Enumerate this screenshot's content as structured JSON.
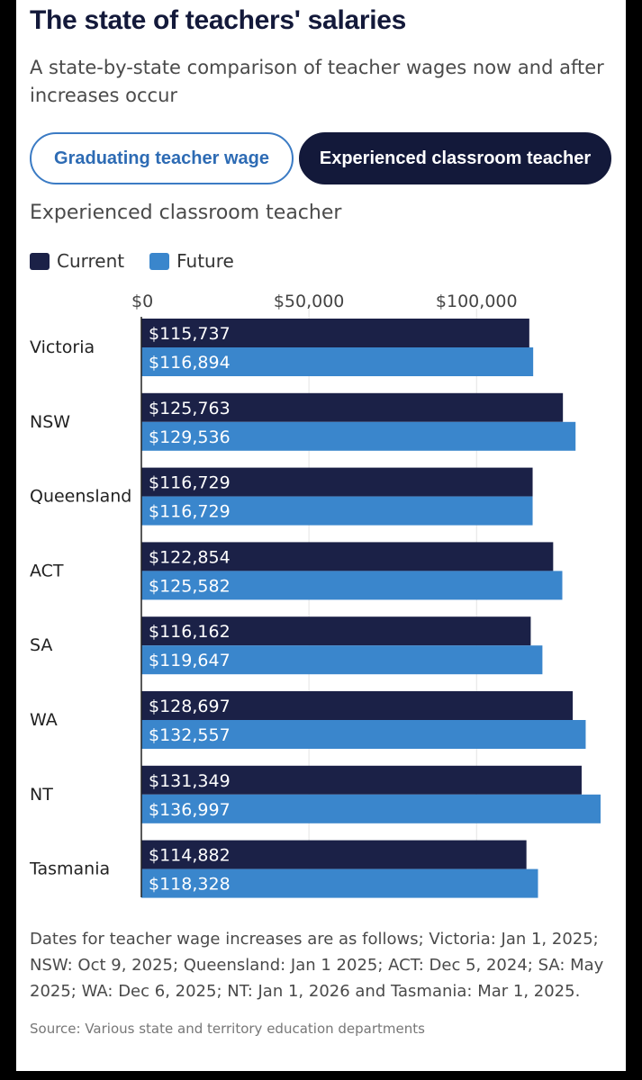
{
  "header": {
    "title": "The state of teachers' salaries",
    "subtitle": "A state-by-state comparison of teacher wages now and after increases occur"
  },
  "tabs": [
    {
      "label": "Graduating teacher wage",
      "selected": false
    },
    {
      "label": "Experienced classroom teacher",
      "selected": true
    }
  ],
  "colors": {
    "current": "#1b2147",
    "future": "#3a86cc",
    "accent": "#3b7bc4"
  },
  "legend": {
    "current": "Current",
    "future": "Future"
  },
  "chart_data": {
    "type": "bar",
    "orientation": "horizontal",
    "title": "Experienced classroom teacher",
    "categories": [
      "Victoria",
      "NSW",
      "Queensland",
      "ACT",
      "SA",
      "WA",
      "NT",
      "Tasmania"
    ],
    "series": [
      {
        "name": "Current",
        "values": [
          115737,
          125763,
          116729,
          122854,
          116162,
          128697,
          131349,
          114882
        ],
        "labels": [
          "$115,737",
          "$125,763",
          "$116,729",
          "$122,854",
          "$116,162",
          "$128,697",
          "$131,349",
          "$114,882"
        ]
      },
      {
        "name": "Future",
        "values": [
          116894,
          129536,
          116729,
          125582,
          119647,
          132557,
          136997,
          118328
        ],
        "labels": [
          "$116,894",
          "$129,536",
          "$116,729",
          "$125,582",
          "$119,647",
          "$132,557",
          "$136,997",
          "$118,328"
        ]
      }
    ],
    "ticks": [
      0,
      50000,
      100000
    ],
    "tick_labels": [
      "$0",
      "$50,000",
      "$100,000"
    ],
    "xlim": [
      0,
      137000
    ],
    "grid": true,
    "legend_position": "top-left"
  },
  "footer": {
    "note": "Dates for teacher wage increases are as follows; Victoria: Jan 1, 2025; NSW: Oct 9, 2025; Queensland: Jan 1 2025; ACT: Dec 5, 2024; SA: May 2025; WA: Dec 6, 2025; NT: Jan 1, 2026 and Tasmania: Mar 1, 2025.",
    "source": "Source: Various state and territory education departments"
  }
}
